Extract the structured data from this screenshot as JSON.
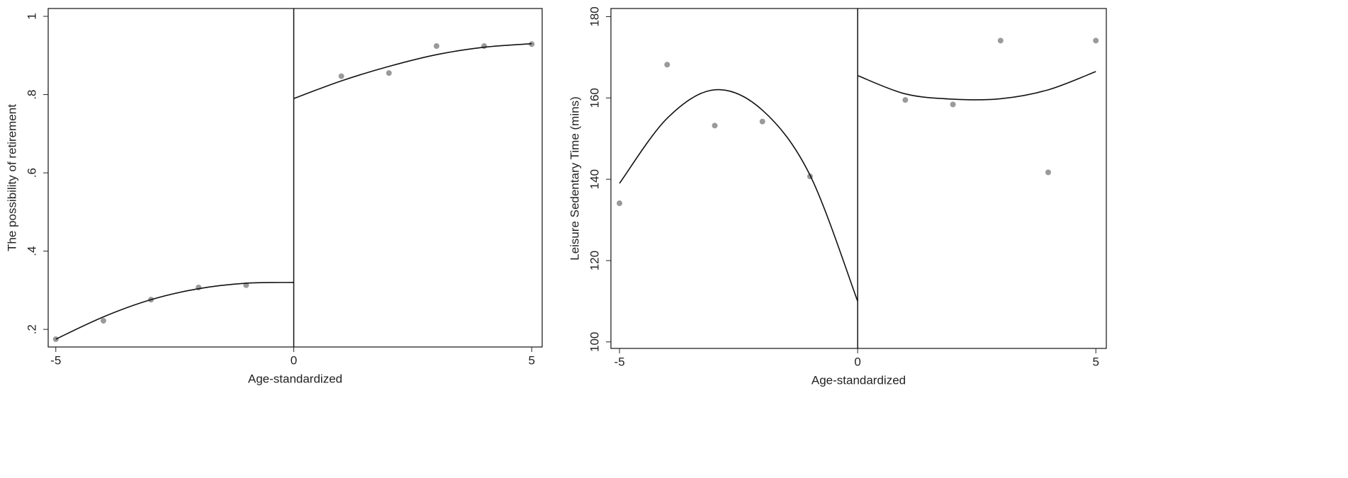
{
  "chart_data": [
    {
      "type": "scatter",
      "xlabel": "Age-standardized",
      "ylabel": "The possibility of retirement",
      "xlim": [
        -5.16,
        5.22
      ],
      "ylim": [
        0.155,
        1.02
      ],
      "xticks": [
        -5,
        0,
        5
      ],
      "yticks": [
        {
          "value": 0.2,
          "label": ".2"
        },
        {
          "value": 0.4,
          "label": ".4"
        },
        {
          "value": 0.6,
          "label": ".6"
        },
        {
          "value": 0.8,
          "label": ".8"
        },
        1
      ],
      "vline": 0,
      "series": [
        {
          "mode": "markers",
          "color": "#9a9a9a",
          "x": [
            -5,
            -4,
            -3,
            -2,
            -1,
            1,
            2,
            3,
            4,
            5
          ],
          "values": [
            0.175,
            0.222,
            0.276,
            0.307,
            0.313,
            0.847,
            0.855,
            0.924,
            0.924,
            0.929
          ]
        },
        {
          "mode": "line",
          "color": "#111111",
          "x": [
            -5,
            -4,
            -3,
            -2,
            -1,
            0
          ],
          "values": [
            0.175,
            0.232,
            0.276,
            0.304,
            0.318,
            0.32
          ]
        },
        {
          "mode": "line",
          "color": "#111111",
          "x": [
            0,
            1,
            2,
            3,
            4,
            5
          ],
          "values": [
            0.79,
            0.835,
            0.872,
            0.902,
            0.921,
            0.93
          ]
        }
      ]
    },
    {
      "type": "scatter",
      "xlabel": "Age-standardized",
      "ylabel": "Leisure Sedentary Time (mins)",
      "xlim": [
        -5.18,
        5.22
      ],
      "ylim": [
        98.4,
        182
      ],
      "xticks": [
        -5,
        0,
        5
      ],
      "yticks": [
        100,
        120,
        140,
        160,
        180
      ],
      "vline": 0,
      "series": [
        {
          "mode": "markers",
          "color": "#9a9a9a",
          "x": [
            -5,
            -4,
            -3,
            -2,
            -1,
            1,
            2,
            3,
            4,
            5
          ],
          "values": [
            134.1,
            168.2,
            153.2,
            154.2,
            140.7,
            159.5,
            158.4,
            174.1,
            141.7,
            174.1
          ]
        },
        {
          "mode": "line",
          "color": "#111111",
          "x": [
            -5,
            -4,
            -3,
            -2,
            -1,
            0
          ],
          "values": [
            139,
            155,
            162,
            157,
            141,
            110
          ]
        },
        {
          "mode": "line",
          "color": "#111111",
          "x": [
            0,
            1,
            2,
            3,
            4,
            5
          ],
          "values": [
            165.5,
            161,
            159.7,
            159.8,
            162,
            166.5
          ]
        }
      ]
    }
  ]
}
